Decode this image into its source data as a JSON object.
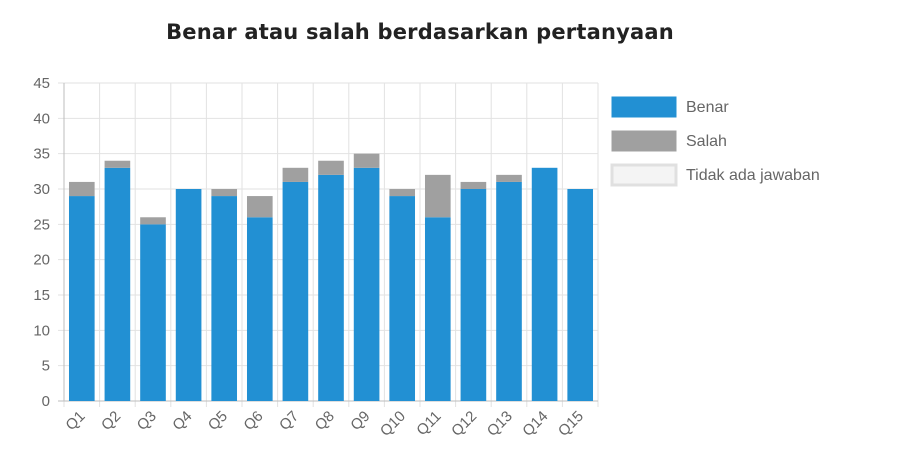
{
  "chart_data": {
    "type": "bar",
    "stacked": true,
    "title": "Benar atau salah berdasarkan pertanyaan",
    "xlabel": "",
    "ylabel": "",
    "categories": [
      "Q1",
      "Q2",
      "Q3",
      "Q4",
      "Q5",
      "Q6",
      "Q7",
      "Q8",
      "Q9",
      "Q10",
      "Q11",
      "Q12",
      "Q13",
      "Q14",
      "Q15"
    ],
    "ylim": [
      0,
      45
    ],
    "yticks": [
      "0",
      "5",
      "10",
      "15",
      "20",
      "25",
      "30",
      "35",
      "40",
      "45"
    ],
    "grid": true,
    "legend_position": "right",
    "series": [
      {
        "name": "Benar",
        "color": "#2290d3",
        "values": [
          29,
          33,
          25,
          30,
          29,
          26,
          31,
          32,
          33,
          29,
          26,
          30,
          31,
          33,
          30
        ]
      },
      {
        "name": "Salah",
        "color": "#a0a0a0",
        "values": [
          2,
          1,
          1,
          0,
          1,
          3,
          2,
          2,
          2,
          1,
          6,
          1,
          1,
          0,
          0
        ]
      },
      {
        "name": "Tidak ada jawaban",
        "color": "#f4f4f4",
        "values": [
          0,
          0,
          0,
          0,
          0,
          0,
          0,
          0,
          0,
          0,
          0,
          0,
          0,
          0,
          0
        ]
      }
    ]
  }
}
